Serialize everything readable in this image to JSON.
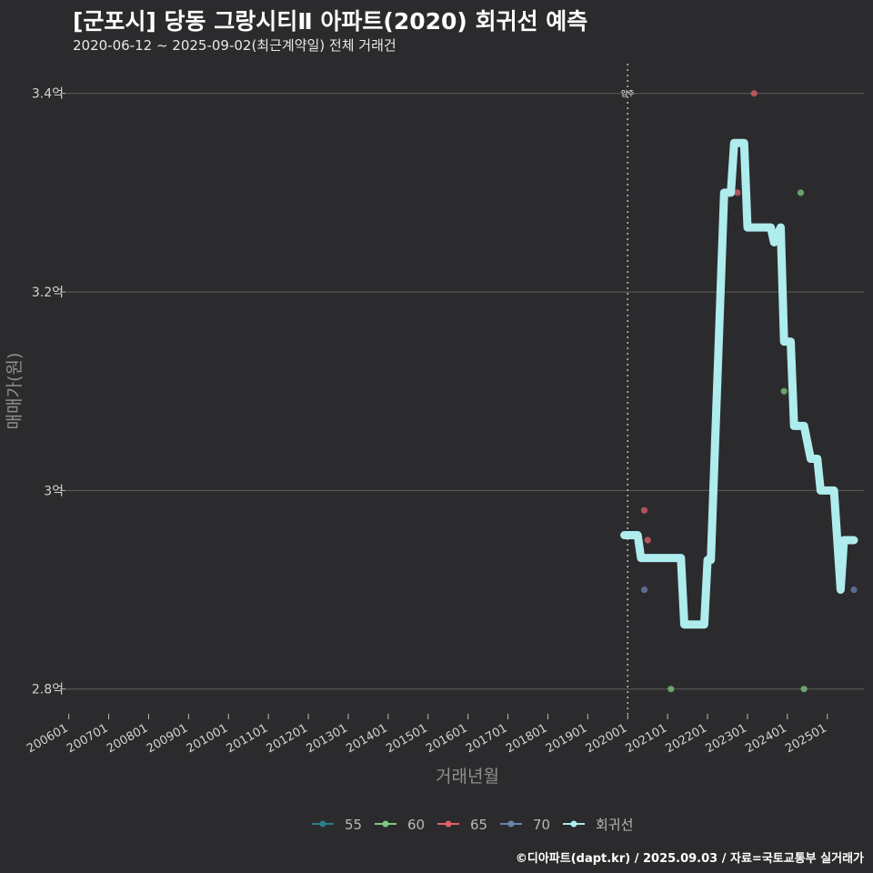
{
  "header": {
    "title": "[군포시] 당동 그랑시티Ⅱ 아파트(2020) 회귀선 예측",
    "subtitle": "2020-06-12 ~ 2025-09-02(최근계약일) 전체 거래건"
  },
  "footer": {
    "credit": "©디아파트(dapt.kr) / 2025.09.03 / 자료=국토교통부 실거래가"
  },
  "colors": {
    "background": "#2b2b2d",
    "grid": "#5e5e5e",
    "regression": "#aeeced",
    "vline": "#bdbdbd",
    "s55": "#2a7f86",
    "s60": "#7fc97f",
    "s65": "#e0606a",
    "s70": "#6a84b0"
  },
  "chart_data": {
    "type": "scatter",
    "xlabel": "거래년월",
    "ylabel": "매매가(원)",
    "ylim": [
      2.775,
      3.43
    ],
    "y_ticks": [
      2.8,
      3.0,
      3.2,
      3.4
    ],
    "y_tick_labels": [
      "2.8억",
      "3억",
      "3.2억",
      "3.4억"
    ],
    "x_ticks": [
      "200601",
      "200701",
      "200801",
      "200901",
      "201001",
      "201101",
      "201201",
      "201301",
      "201401",
      "201501",
      "201601",
      "201701",
      "201801",
      "201901",
      "202001",
      "202101",
      "202201",
      "202301",
      "202401",
      "202501"
    ],
    "vline": {
      "x": "2020-01",
      "label": "입주"
    },
    "legend": {
      "position": "bottom",
      "entries": [
        {
          "name": "55",
          "color_key": "s55"
        },
        {
          "name": "60",
          "color_key": "s60"
        },
        {
          "name": "65",
          "color_key": "s65"
        },
        {
          "name": "70",
          "color_key": "s70"
        },
        {
          "name": "회귀선",
          "color_key": "regression"
        }
      ]
    },
    "series": [
      {
        "name": "55",
        "points": []
      },
      {
        "name": "60",
        "points": [
          {
            "x": "2021-02",
            "y": 2.8
          },
          {
            "x": "2023-12",
            "y": 3.1
          },
          {
            "x": "2024-05",
            "y": 3.3
          },
          {
            "x": "2024-06",
            "y": 2.8
          }
        ]
      },
      {
        "name": "65",
        "points": [
          {
            "x": "2020-06",
            "y": 2.98
          },
          {
            "x": "2020-07",
            "y": 2.95
          },
          {
            "x": "2023-03",
            "y": 3.4
          },
          {
            "x": "2022-10",
            "y": 3.3
          }
        ]
      },
      {
        "name": "70",
        "points": [
          {
            "x": "2020-06",
            "y": 2.9
          },
          {
            "x": "2025-09",
            "y": 2.9
          }
        ]
      }
    ],
    "regression": [
      {
        "x": "2019-12",
        "y": 2.955
      },
      {
        "x": "2020-04",
        "y": 2.955
      },
      {
        "x": "2020-05",
        "y": 2.932
      },
      {
        "x": "2021-05",
        "y": 2.932
      },
      {
        "x": "2021-06",
        "y": 2.865
      },
      {
        "x": "2021-12",
        "y": 2.865
      },
      {
        "x": "2022-01",
        "y": 2.93
      },
      {
        "x": "2022-02",
        "y": 2.93
      },
      {
        "x": "2022-06",
        "y": 3.3
      },
      {
        "x": "2022-08",
        "y": 3.3
      },
      {
        "x": "2022-09",
        "y": 3.35
      },
      {
        "x": "2022-12",
        "y": 3.35
      },
      {
        "x": "2023-01",
        "y": 3.265
      },
      {
        "x": "2023-08",
        "y": 3.265
      },
      {
        "x": "2023-09",
        "y": 3.25
      },
      {
        "x": "2023-11",
        "y": 3.265
      },
      {
        "x": "2023-12",
        "y": 3.15
      },
      {
        "x": "2024-02",
        "y": 3.15
      },
      {
        "x": "2024-03",
        "y": 3.065
      },
      {
        "x": "2024-06",
        "y": 3.065
      },
      {
        "x": "2024-08",
        "y": 3.032
      },
      {
        "x": "2024-10",
        "y": 3.032
      },
      {
        "x": "2024-11",
        "y": 3.0
      },
      {
        "x": "2025-03",
        "y": 3.0
      },
      {
        "x": "2025-05",
        "y": 2.9
      },
      {
        "x": "2025-06",
        "y": 2.95
      },
      {
        "x": "2025-09",
        "y": 2.95
      }
    ]
  }
}
